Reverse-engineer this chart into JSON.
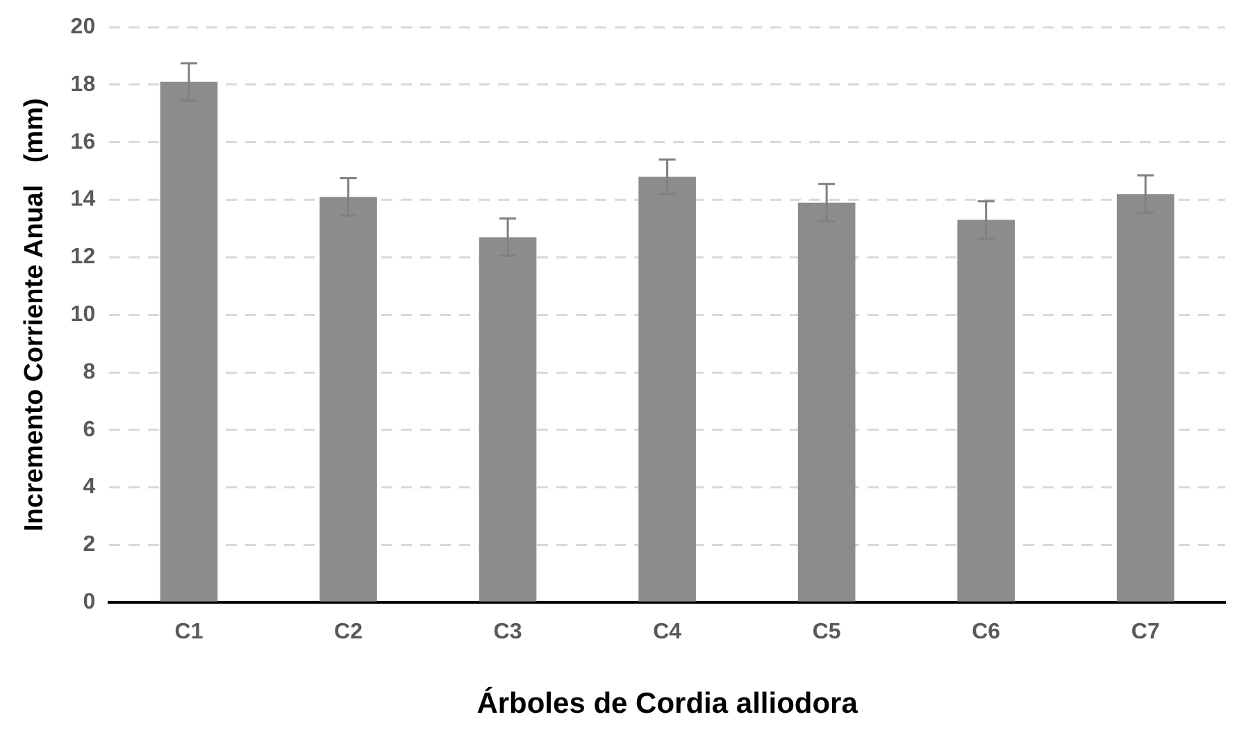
{
  "chart_data": {
    "type": "bar",
    "categories": [
      "C1",
      "C2",
      "C3",
      "C4",
      "C5",
      "C6",
      "C7"
    ],
    "values": [
      18.1,
      14.1,
      12.7,
      14.8,
      13.9,
      13.3,
      14.2
    ],
    "errors": [
      0.65,
      0.65,
      0.65,
      0.6,
      0.65,
      0.65,
      0.65
    ],
    "color": "#8c8c8c",
    "xlabel": "Árboles de Cordia alliodora",
    "ylabel": "Incremento Corriente Anual   (mm)",
    "ylim": [
      0,
      20
    ],
    "yticks": [
      0,
      2,
      4,
      6,
      8,
      10,
      12,
      14,
      16,
      18,
      20
    ],
    "grid": "y",
    "legend": false
  }
}
